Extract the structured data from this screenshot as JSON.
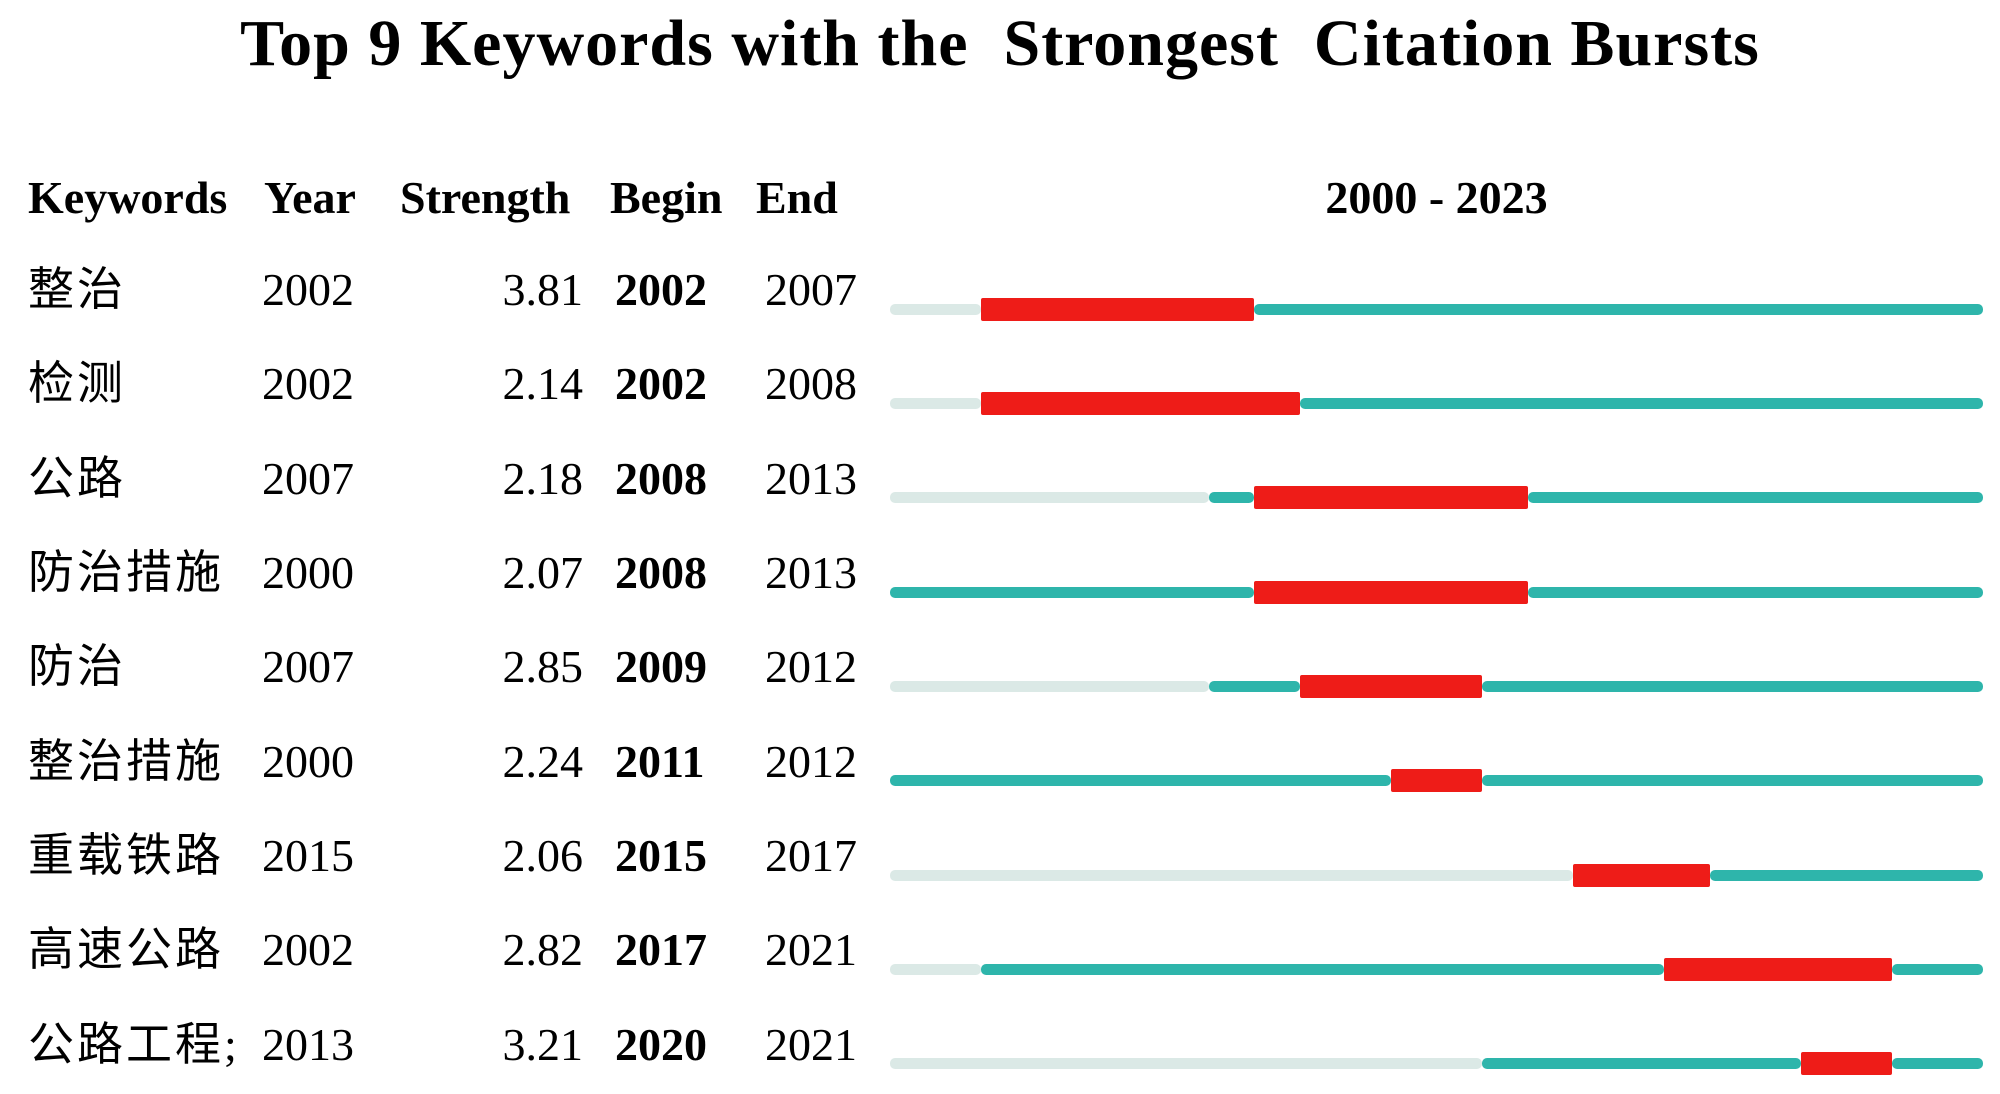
{
  "title": "Top 9 Keywords with the  Strongest  Citation Bursts",
  "header": {
    "keywords": "Keywords",
    "year": "Year",
    "strength": "Strength",
    "begin": "Begin",
    "end": "End",
    "timeline_range": "2000 - 2023"
  },
  "timeline": {
    "start_year": 2000,
    "end_year": 2023,
    "slots": 24
  },
  "colors": {
    "teal": "#2eb5ab",
    "light": "#dbe9e6",
    "red": "#ee1c18"
  },
  "rows": [
    {
      "keyword": "整治",
      "year": "2002",
      "strength": "3.81",
      "begin": "2002",
      "end": "2007"
    },
    {
      "keyword": "检测",
      "year": "2002",
      "strength": "2.14",
      "begin": "2002",
      "end": "2008"
    },
    {
      "keyword": "公路",
      "year": "2007",
      "strength": "2.18",
      "begin": "2008",
      "end": "2013"
    },
    {
      "keyword": "防治措施",
      "year": "2000",
      "strength": "2.07",
      "begin": "2008",
      "end": "2013"
    },
    {
      "keyword": "防治",
      "year": "2007",
      "strength": "2.85",
      "begin": "2009",
      "end": "2012"
    },
    {
      "keyword": "整治措施",
      "year": "2000",
      "strength": "2.24",
      "begin": "2011",
      "end": "2012"
    },
    {
      "keyword": "重载铁路",
      "year": "2015",
      "strength": "2.06",
      "begin": "2015",
      "end": "2017"
    },
    {
      "keyword": "高速公路",
      "year": "2002",
      "strength": "2.82",
      "begin": "2017",
      "end": "2021"
    },
    {
      "keyword": "公路工程;",
      "year": "2013",
      "strength": "3.21",
      "begin": "2020",
      "end": "2021"
    }
  ],
  "chart_data": {
    "type": "table",
    "title": "Top 9 Keywords with the  Strongest  Citation Bursts",
    "columns": [
      "Keywords",
      "Year",
      "Strength",
      "Begin",
      "End",
      "2000 - 2023"
    ],
    "x_range": [
      2000,
      2023
    ],
    "rows": [
      {
        "keyword": "整治",
        "year": 2002,
        "strength": 3.81,
        "begin": 2002,
        "end": 2007
      },
      {
        "keyword": "检测",
        "year": 2002,
        "strength": 2.14,
        "begin": 2002,
        "end": 2008
      },
      {
        "keyword": "公路",
        "year": 2007,
        "strength": 2.18,
        "begin": 2008,
        "end": 2013
      },
      {
        "keyword": "防治措施",
        "year": 2000,
        "strength": 2.07,
        "begin": 2008,
        "end": 2013
      },
      {
        "keyword": "防治",
        "year": 2007,
        "strength": 2.85,
        "begin": 2009,
        "end": 2012
      },
      {
        "keyword": "整治措施",
        "year": 2000,
        "strength": 2.24,
        "begin": 2011,
        "end": 2012
      },
      {
        "keyword": "重载铁路",
        "year": 2015,
        "strength": 2.06,
        "begin": 2015,
        "end": 2017
      },
      {
        "keyword": "高速公路",
        "year": 2002,
        "strength": 2.82,
        "begin": 2017,
        "end": 2021
      },
      {
        "keyword": "公路工程;",
        "year": 2013,
        "strength": 3.21,
        "begin": 2020,
        "end": 2021
      }
    ],
    "bar_encoding": {
      "light": "years before first occurrence of keyword",
      "teal": "years keyword present (non-burst)",
      "red": "citation burst interval (begin..end inclusive)"
    }
  }
}
